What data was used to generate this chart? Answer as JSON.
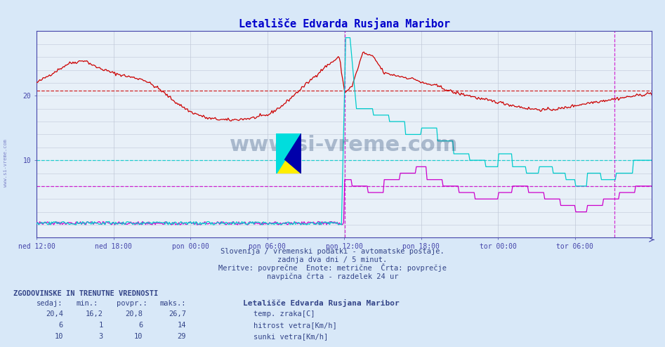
{
  "title": "Letališče Edvarda Rusjana Maribor",
  "bg_color": "#d8e8f8",
  "plot_bg_color": "#e8f0f8",
  "title_color": "#0000cc",
  "axis_color": "#4444aa",
  "grid_color": "#c0c8d8",
  "text_color": "#334488",
  "xtick_labels": [
    "ned 12:00",
    "ned 18:00",
    "pon 00:00",
    "pon 06:00",
    "pon 12:00",
    "pon 18:00",
    "tor 00:00",
    "tor 06:00"
  ],
  "ymin": -2,
  "ymax": 30,
  "n_points": 576,
  "temp_color": "#cc0000",
  "wind_speed_color": "#cc00cc",
  "wind_gust_color": "#00cccc",
  "avg_temp": 20.8,
  "avg_wind_speed": 6,
  "avg_wind_gust": 10,
  "subtitle1": "Slovenija / vremenski podatki - avtomatske postaje.",
  "subtitle2": "zadnja dva dni / 5 minut.",
  "subtitle3": "Meritve: povprečne  Enote: metrične  Črta: povprečje",
  "subtitle4": "navpična črta - razdelek 24 ur",
  "legend_title": "Letališče Edvarda Rusjana Maribor",
  "legend_entries": [
    {
      "label": "temp. zraka[C]",
      "color": "#cc0000"
    },
    {
      "label": "hitrost vetra[Km/h]",
      "color": "#cc00cc"
    },
    {
      "label": "sunki vetra[Km/h]",
      "color": "#00cccc"
    }
  ],
  "table_header": "ZGODOVINSKE IN TRENUTNE VREDNOSTI",
  "table_cols": [
    "sedaj:",
    "min.:",
    "povpr.:",
    "maks.:"
  ],
  "table_rows": [
    [
      "20,4",
      "16,2",
      "20,8",
      "26,7"
    ],
    [
      "6",
      "1",
      "6",
      "14"
    ],
    [
      "10",
      "3",
      "10",
      "29"
    ]
  ],
  "watermark": "www.si-vreme.com",
  "vline1": 288,
  "vline2": 540
}
